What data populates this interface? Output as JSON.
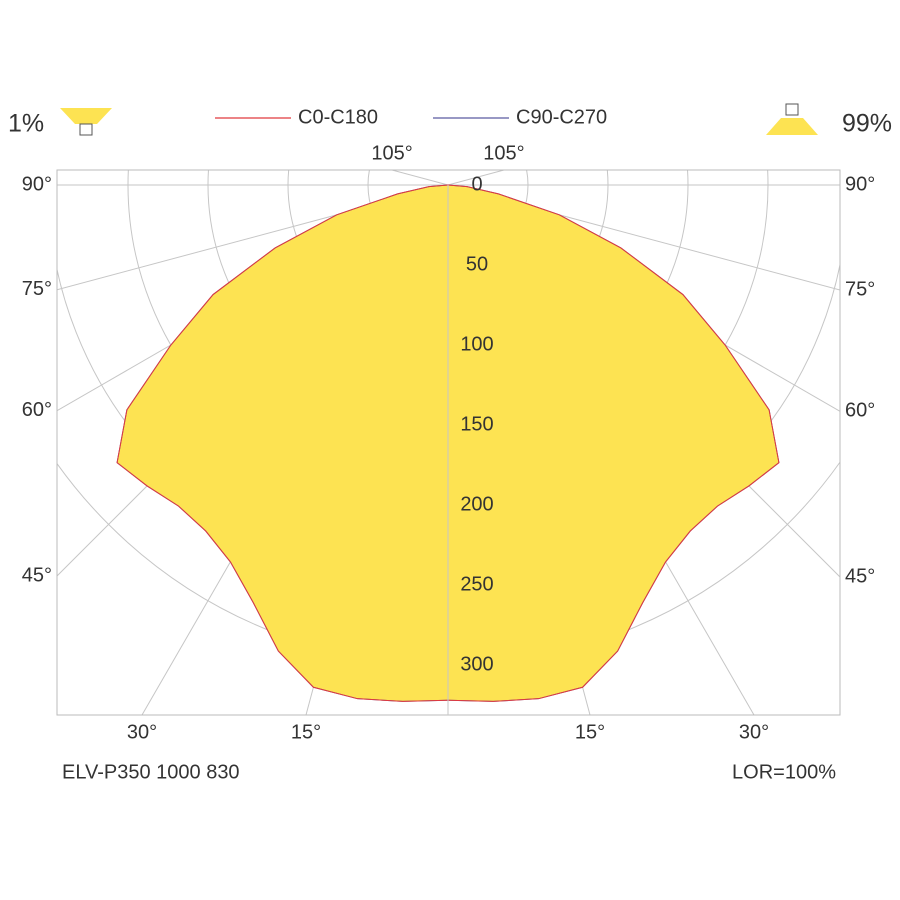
{
  "chart_data": {
    "type": "polar",
    "x": [
      0,
      5,
      10,
      15,
      20,
      25,
      30,
      35,
      40,
      45,
      50,
      55,
      60,
      65,
      70,
      75,
      80,
      85,
      90
    ],
    "series": [
      {
        "name": "C0-C180",
        "color": "#e0393e",
        "values": [
          322,
          324,
          326,
          325,
          310,
          288,
          272,
          264,
          262,
          266,
          270,
          245,
          200,
          162,
          115,
          72,
          32,
          12,
          0
        ]
      },
      {
        "name": "C90-C270",
        "color": "#5a5aa0",
        "values": [
          322,
          324,
          326,
          325,
          310,
          288,
          272,
          264,
          262,
          266,
          270,
          245,
          200,
          162,
          115,
          72,
          32,
          12,
          0
        ]
      }
    ],
    "fill_color": "#fde352",
    "rlim": [
      0,
      331.25
    ],
    "rticks": [
      0,
      50,
      100,
      150,
      200,
      250,
      300
    ],
    "angle_ticks": [
      {
        "value": 105,
        "label": "105°"
      },
      {
        "value": 90,
        "label": "90°"
      },
      {
        "value": 75,
        "label": "75°"
      },
      {
        "value": 60,
        "label": "60°"
      },
      {
        "value": 45,
        "label": "45°"
      },
      {
        "value": 30,
        "label": "30°"
      },
      {
        "value": 15,
        "label": "15°"
      }
    ],
    "upper_label": "1%",
    "lower_label": "99%",
    "footer_left": "ELV-P350 1000 830",
    "footer_right": "LOR=100%",
    "grid": true
  }
}
